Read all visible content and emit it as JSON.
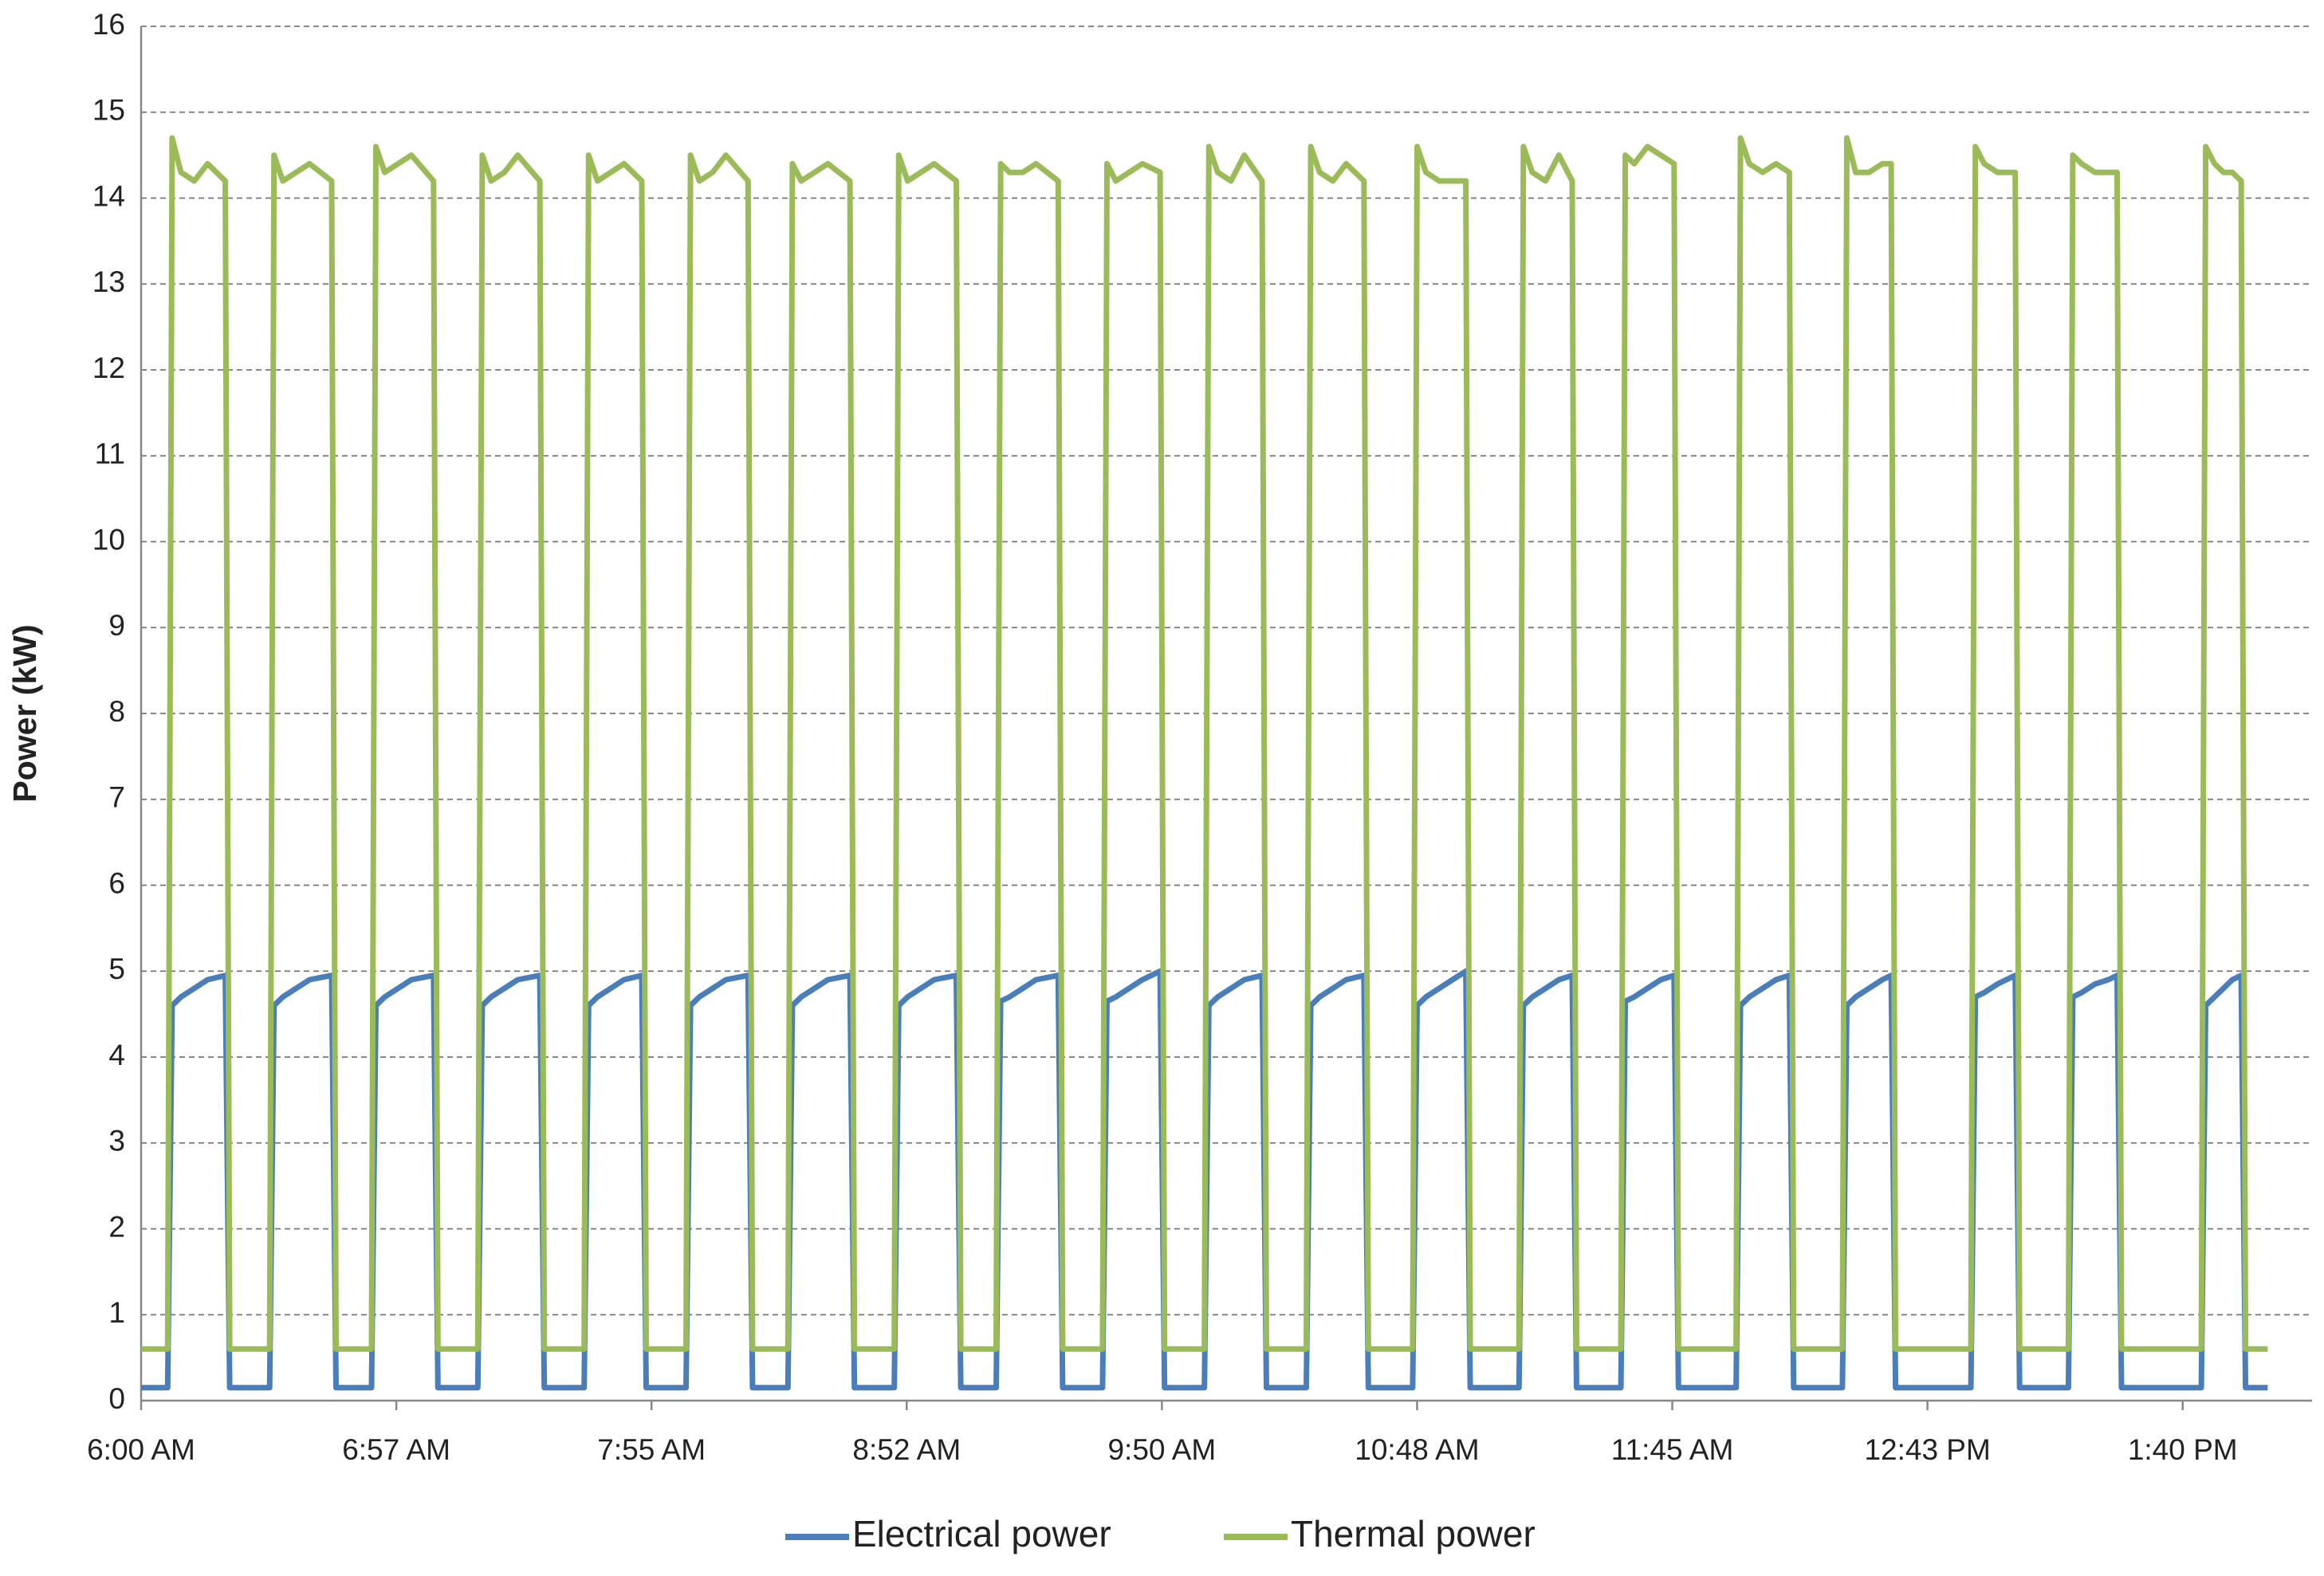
{
  "chart_data": {
    "type": "line",
    "y_label": "Power (kW)",
    "x": [
      360,
      366,
      367,
      369,
      372,
      375,
      379,
      380,
      389,
      390,
      392,
      395,
      398,
      403,
      404,
      412,
      413,
      415,
      418,
      421,
      426,
      427,
      436,
      437,
      439,
      442,
      445,
      450,
      451,
      460,
      461,
      463,
      466,
      469,
      473,
      474,
      483,
      484,
      486,
      489,
      492,
      497,
      498,
      506,
      507,
      509,
      512,
      515,
      520,
      521,
      530,
      531,
      533,
      536,
      539,
      544,
      545,
      553,
      554,
      556,
      559,
      562,
      567,
      568,
      577,
      578,
      580,
      583,
      586,
      590,
      591,
      600,
      601,
      603,
      606,
      609,
      613,
      614,
      623,
      624,
      626,
      629,
      632,
      636,
      637,
      647,
      648,
      650,
      653,
      656,
      659,
      660,
      671,
      672,
      674,
      677,
      680,
      683,
      684,
      694,
      695,
      697,
      700,
      703,
      706,
      707,
      720,
      721,
      723,
      726,
      729,
      732,
      733,
      744,
      745,
      747,
      750,
      753,
      755,
      756,
      773,
      774,
      776,
      779,
      781,
      783,
      784,
      795,
      796,
      798,
      801,
      804,
      806,
      807,
      825,
      826,
      828,
      830,
      832,
      834,
      835,
      840
    ],
    "series": [
      {
        "name": "Electrical power",
        "color": "#4a7ebb",
        "values": [
          0.15,
          0.15,
          4.6,
          4.7,
          4.8,
          4.9,
          4.95,
          0.15,
          0.15,
          4.6,
          4.7,
          4.8,
          4.9,
          4.95,
          0.15,
          0.15,
          4.6,
          4.7,
          4.8,
          4.9,
          4.95,
          0.15,
          0.15,
          4.6,
          4.7,
          4.8,
          4.9,
          4.95,
          0.15,
          0.15,
          4.6,
          4.7,
          4.8,
          4.9,
          4.95,
          0.15,
          0.15,
          4.6,
          4.7,
          4.8,
          4.9,
          4.95,
          0.15,
          0.15,
          4.6,
          4.7,
          4.8,
          4.9,
          4.95,
          0.15,
          0.15,
          4.6,
          4.7,
          4.8,
          4.9,
          4.95,
          0.15,
          0.15,
          4.65,
          4.7,
          4.8,
          4.9,
          4.95,
          0.15,
          0.15,
          4.65,
          4.7,
          4.8,
          4.9,
          5.0,
          0.15,
          0.15,
          4.6,
          4.7,
          4.8,
          4.9,
          4.95,
          0.15,
          0.15,
          4.6,
          4.7,
          4.8,
          4.9,
          4.95,
          0.15,
          0.15,
          4.6,
          4.7,
          4.8,
          4.9,
          5.0,
          0.15,
          0.15,
          4.6,
          4.7,
          4.8,
          4.9,
          4.95,
          0.15,
          0.15,
          4.65,
          4.7,
          4.8,
          4.9,
          4.95,
          0.15,
          0.15,
          4.6,
          4.7,
          4.8,
          4.9,
          4.95,
          0.15,
          0.15,
          4.6,
          4.7,
          4.8,
          4.9,
          4.95,
          0.15,
          0.15,
          4.7,
          4.75,
          4.85,
          4.9,
          4.95,
          0.15,
          0.15,
          4.7,
          4.75,
          4.85,
          4.9,
          4.95,
          0.15,
          0.15,
          4.6,
          4.7,
          4.8,
          4.9,
          4.95,
          0.15,
          0.15
        ]
      },
      {
        "name": "Thermal power",
        "color": "#9bbb59",
        "values": [
          0.6,
          0.6,
          14.7,
          14.3,
          14.2,
          14.4,
          14.2,
          0.6,
          0.6,
          14.5,
          14.2,
          14.3,
          14.4,
          14.2,
          0.6,
          0.6,
          14.6,
          14.3,
          14.4,
          14.5,
          14.2,
          0.6,
          0.6,
          14.5,
          14.2,
          14.3,
          14.5,
          14.2,
          0.6,
          0.6,
          14.5,
          14.2,
          14.3,
          14.4,
          14.2,
          0.6,
          0.6,
          14.5,
          14.2,
          14.3,
          14.5,
          14.2,
          0.6,
          0.6,
          14.4,
          14.2,
          14.3,
          14.4,
          14.2,
          0.6,
          0.6,
          14.5,
          14.2,
          14.3,
          14.4,
          14.2,
          0.6,
          0.6,
          14.4,
          14.3,
          14.3,
          14.4,
          14.2,
          0.6,
          0.6,
          14.4,
          14.2,
          14.3,
          14.4,
          14.3,
          0.6,
          0.6,
          14.6,
          14.3,
          14.2,
          14.5,
          14.2,
          0.6,
          0.6,
          14.6,
          14.3,
          14.2,
          14.4,
          14.2,
          0.6,
          0.6,
          14.6,
          14.3,
          14.2,
          14.2,
          14.2,
          0.6,
          0.6,
          14.6,
          14.3,
          14.2,
          14.5,
          14.2,
          0.6,
          0.6,
          14.5,
          14.4,
          14.6,
          14.5,
          14.4,
          0.6,
          0.6,
          14.7,
          14.4,
          14.3,
          14.4,
          14.3,
          0.6,
          0.6,
          14.7,
          14.3,
          14.3,
          14.4,
          14.4,
          0.6,
          0.6,
          14.6,
          14.4,
          14.3,
          14.3,
          14.3,
          0.6,
          0.6,
          14.5,
          14.4,
          14.3,
          14.3,
          14.3,
          0.6,
          0.6,
          14.6,
          14.4,
          14.3,
          14.3,
          14.2,
          0.6,
          0.6
        ]
      }
    ],
    "xlim": [
      360,
      850
    ],
    "xticks": [
      {
        "value": 360,
        "label": "6:00 AM"
      },
      {
        "value": 417.6,
        "label": "6:57 AM"
      },
      {
        "value": 475.2,
        "label": "7:55 AM"
      },
      {
        "value": 532.8,
        "label": "8:52 AM"
      },
      {
        "value": 590.4,
        "label": "9:50 AM"
      },
      {
        "value": 648,
        "label": "10:48 AM"
      },
      {
        "value": 705.6,
        "label": "11:45 AM"
      },
      {
        "value": 763.2,
        "label": "12:43 PM"
      },
      {
        "value": 820.8,
        "label": "1:40 PM"
      }
    ],
    "ylim": [
      0,
      16
    ],
    "yticks": [
      0,
      1,
      2,
      3,
      4,
      5,
      6,
      7,
      8,
      9,
      10,
      11,
      12,
      13,
      14,
      15,
      16
    ],
    "grid": true,
    "legend": "bottom"
  }
}
